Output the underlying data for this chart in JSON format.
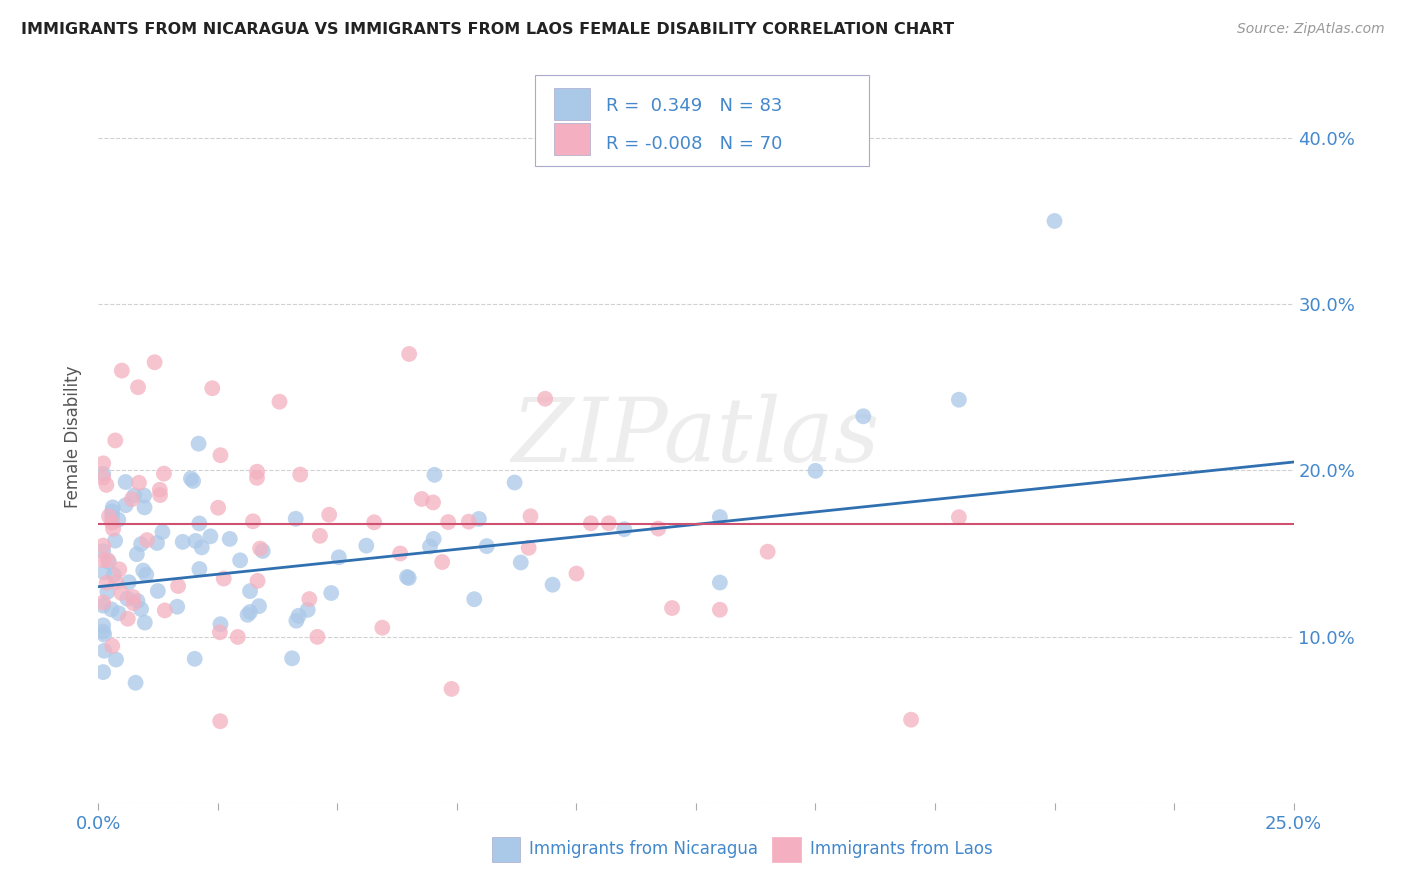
{
  "title": "IMMIGRANTS FROM NICARAGUA VS IMMIGRANTS FROM LAOS FEMALE DISABILITY CORRELATION CHART",
  "source": "Source: ZipAtlas.com",
  "ylabel": "Female Disability",
  "x_min": 0.0,
  "x_max": 0.25,
  "y_min": 0.0,
  "y_max": 0.44,
  "y_ticks": [
    0.0,
    0.1,
    0.2,
    0.3,
    0.4
  ],
  "y_tick_labels": [
    "",
    "10.0%",
    "20.0%",
    "30.0%",
    "40.0%"
  ],
  "color_nicaragua": "#aac8e8",
  "color_laos": "#f4b0c0",
  "line_color_nicaragua": "#3070b0",
  "line_color_laos": "#d05070",
  "R_nicaragua": 0.349,
  "N_nicaragua": 83,
  "R_laos": -0.008,
  "N_laos": 70,
  "legend_label_nicaragua": "Immigrants from Nicaragua",
  "legend_label_laos": "Immigrants from Laos",
  "watermark": "ZIPatlas",
  "background_color": "#ffffff",
  "grid_color": "#cccccc",
  "title_color": "#222222",
  "tick_color": "#4488cc",
  "nic_trend_start": 0.13,
  "nic_trend_end": 0.205,
  "laos_trend_y": 0.168,
  "seed": 99
}
